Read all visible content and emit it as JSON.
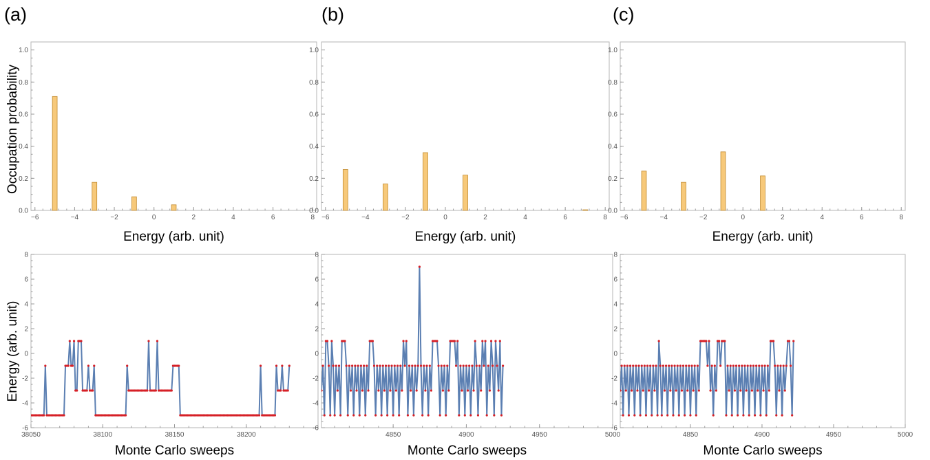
{
  "figure": {
    "panel_labels": [
      "(a)",
      "(b)",
      "(c)"
    ],
    "top_ylabel": "Occupation probability",
    "bottom_ylabel": "Energy (arb. unit)"
  },
  "chart_data": [
    {
      "id": "a-top",
      "type": "bar",
      "xlabel": "Energy (arb. unit)",
      "ylabel": "Occupation probability",
      "xlim": [
        -6.2,
        8.2
      ],
      "ylim": [
        0,
        1.05
      ],
      "xticks": [
        -6,
        -4,
        -2,
        0,
        2,
        4,
        6,
        8
      ],
      "yticks": [
        0.0,
        0.2,
        0.4,
        0.6,
        0.8,
        1.0
      ],
      "ytick_labels": [
        "0.0",
        "0.2",
        "0.4",
        "0.6",
        "0.8",
        "1.0"
      ],
      "x": [
        -5,
        -3,
        -1,
        1
      ],
      "values": [
        0.71,
        0.175,
        0.085,
        0.035
      ]
    },
    {
      "id": "b-top",
      "type": "bar",
      "xlabel": "Energy (arb. unit)",
      "ylabel": "",
      "xlim": [
        -6.2,
        8.2
      ],
      "ylim": [
        0,
        1.05
      ],
      "xticks": [
        -6,
        -4,
        -2,
        0,
        2,
        4,
        6,
        8
      ],
      "yticks": [
        0.0,
        0.2,
        0.4,
        0.6,
        0.8,
        1.0
      ],
      "ytick_labels": [
        "0.0",
        "0.2",
        "0.4",
        "0.6",
        "0.8",
        "1.0"
      ],
      "x": [
        -5,
        -3,
        -1,
        1,
        7
      ],
      "values": [
        0.255,
        0.165,
        0.36,
        0.22,
        0.004
      ]
    },
    {
      "id": "c-top",
      "type": "bar",
      "xlabel": "Energy (arb. unit)",
      "ylabel": "",
      "xlim": [
        -6.2,
        8.2
      ],
      "ylim": [
        0,
        1.05
      ],
      "xticks": [
        -6,
        -4,
        -2,
        0,
        2,
        4,
        6,
        8
      ],
      "yticks": [
        0.0,
        0.2,
        0.4,
        0.6,
        0.8,
        1.0
      ],
      "ytick_labels": [
        "0.0",
        "0.2",
        "0.4",
        "0.6",
        "0.8",
        "1.0"
      ],
      "x": [
        -5,
        -3,
        -1,
        1
      ],
      "values": [
        0.245,
        0.175,
        0.365,
        0.215
      ]
    },
    {
      "id": "a-bottom",
      "type": "line",
      "xlabel": "Monte Carlo sweeps",
      "ylabel": "Energy (arb. unit)",
      "xlim": [
        38050,
        38250
      ],
      "ylim": [
        -6,
        8
      ],
      "xticks": [
        38050,
        38100,
        38150,
        38200
      ],
      "yticks": [
        -6,
        -4,
        -2,
        0,
        2,
        4,
        6,
        8
      ],
      "x_start": 38050,
      "x_step": 1,
      "y_runs": [
        [
          -5,
          10
        ],
        [
          -1,
          1
        ],
        [
          -5,
          13
        ],
        [
          -1,
          3
        ],
        [
          1,
          1
        ],
        [
          -1,
          2
        ],
        [
          1,
          1
        ],
        [
          -3,
          2
        ],
        [
          1,
          3
        ],
        [
          -3,
          4
        ],
        [
          -1,
          1
        ],
        [
          -3,
          3
        ],
        [
          -1,
          1
        ],
        [
          -5,
          22
        ],
        [
          -1,
          1
        ],
        [
          -3,
          14
        ],
        [
          1,
          1
        ],
        [
          -3,
          5
        ],
        [
          1,
          1
        ],
        [
          -3,
          10
        ],
        [
          -1,
          5
        ],
        [
          -5,
          56
        ],
        [
          -1,
          1
        ],
        [
          -5,
          10
        ],
        [
          -1,
          1
        ],
        [
          -3,
          3
        ],
        [
          -1,
          1
        ],
        [
          -3,
          4
        ],
        [
          -1,
          1
        ]
      ]
    },
    {
      "id": "b-bottom",
      "type": "line",
      "xlabel": "Monte Carlo sweeps",
      "ylabel": "",
      "xlim": [
        4801,
        5000
      ],
      "ylim": [
        -6,
        8
      ],
      "xticks": [
        4850,
        4900,
        4950,
        5000
      ],
      "yticks": [
        -6,
        -4,
        -2,
        0,
        2,
        4,
        6,
        8
      ],
      "x_start": 4801,
      "x_step": 1,
      "y_runs": [
        [
          -3,
          1
        ],
        [
          -1,
          1
        ],
        [
          -5,
          1
        ],
        [
          1,
          2
        ],
        [
          -1,
          1
        ],
        [
          -5,
          1
        ],
        [
          1,
          1
        ],
        [
          -1,
          1
        ],
        [
          -5,
          1
        ],
        [
          -1,
          1
        ],
        [
          -3,
          1
        ],
        [
          -1,
          1
        ],
        [
          -5,
          1
        ],
        [
          1,
          3
        ],
        [
          -1,
          1
        ],
        [
          -5,
          1
        ],
        [
          -1,
          1
        ],
        [
          -3,
          1
        ],
        [
          -1,
          1
        ],
        [
          -5,
          1
        ],
        [
          -1,
          1
        ],
        [
          -3,
          1
        ],
        [
          -1,
          1
        ],
        [
          -5,
          1
        ],
        [
          -1,
          1
        ],
        [
          -3,
          1
        ],
        [
          -1,
          1
        ],
        [
          -5,
          1
        ],
        [
          -1,
          1
        ],
        [
          -3,
          1
        ],
        [
          1,
          3
        ],
        [
          -1,
          1
        ],
        [
          -5,
          1
        ],
        [
          -1,
          1
        ],
        [
          -3,
          1
        ],
        [
          -1,
          1
        ],
        [
          -5,
          1
        ],
        [
          -1,
          1
        ],
        [
          -3,
          1
        ],
        [
          -1,
          1
        ],
        [
          -5,
          1
        ],
        [
          -1,
          1
        ],
        [
          -3,
          1
        ],
        [
          -1,
          1
        ],
        [
          -5,
          1
        ],
        [
          -1,
          1
        ],
        [
          -3,
          1
        ],
        [
          -1,
          1
        ],
        [
          -5,
          1
        ],
        [
          -1,
          1
        ],
        [
          -3,
          1
        ],
        [
          1,
          1
        ],
        [
          -1,
          1
        ],
        [
          1,
          1
        ],
        [
          -5,
          1
        ],
        [
          -1,
          1
        ],
        [
          -3,
          1
        ],
        [
          -1,
          1
        ],
        [
          -5,
          1
        ],
        [
          -1,
          1
        ],
        [
          -3,
          1
        ],
        [
          -1,
          1
        ],
        [
          7,
          1
        ],
        [
          -1,
          1
        ],
        [
          -5,
          1
        ],
        [
          -1,
          1
        ],
        [
          -3,
          1
        ],
        [
          -1,
          1
        ],
        [
          -5,
          1
        ],
        [
          -1,
          1
        ],
        [
          -3,
          1
        ],
        [
          1,
          4
        ],
        [
          -1,
          1
        ],
        [
          -5,
          1
        ],
        [
          -1,
          1
        ],
        [
          -3,
          1
        ],
        [
          -1,
          1
        ],
        [
          -5,
          1
        ],
        [
          -1,
          1
        ],
        [
          -3,
          1
        ],
        [
          1,
          4
        ],
        [
          -1,
          1
        ],
        [
          1,
          1
        ],
        [
          -5,
          1
        ],
        [
          -1,
          1
        ],
        [
          -3,
          1
        ],
        [
          -1,
          1
        ],
        [
          -5,
          1
        ],
        [
          -1,
          1
        ],
        [
          -3,
          1
        ],
        [
          -1,
          1
        ],
        [
          -5,
          1
        ],
        [
          -1,
          1
        ],
        [
          -3,
          1
        ],
        [
          1,
          1
        ],
        [
          -1,
          1
        ],
        [
          -5,
          1
        ],
        [
          -1,
          1
        ],
        [
          -3,
          1
        ],
        [
          1,
          1
        ],
        [
          -1,
          1
        ],
        [
          1,
          1
        ],
        [
          -5,
          1
        ],
        [
          -1,
          1
        ],
        [
          -3,
          1
        ],
        [
          1,
          1
        ],
        [
          -1,
          1
        ],
        [
          -5,
          1
        ],
        [
          1,
          1
        ],
        [
          -1,
          1
        ],
        [
          -3,
          1
        ],
        [
          1,
          1
        ],
        [
          -5,
          1
        ],
        [
          -1,
          1
        ]
      ]
    },
    {
      "id": "c-bottom",
      "type": "line",
      "xlabel": "Monte Carlo sweeps",
      "ylabel": "",
      "xlim": [
        4801,
        5000
      ],
      "ylim": [
        -6,
        8
      ],
      "xticks": [
        4850,
        4900,
        4950,
        5000
      ],
      "yticks": [
        -6,
        -4,
        -2,
        0,
        2,
        4,
        6,
        8
      ],
      "x_start": 4801,
      "x_step": 1,
      "y_runs": [
        [
          -3,
          1
        ],
        [
          -1,
          1
        ],
        [
          -5,
          1
        ],
        [
          -1,
          1
        ],
        [
          -3,
          1
        ],
        [
          -1,
          1
        ],
        [
          -5,
          1
        ],
        [
          -1,
          1
        ],
        [
          -3,
          1
        ],
        [
          -1,
          1
        ],
        [
          -5,
          1
        ],
        [
          -1,
          1
        ],
        [
          -3,
          1
        ],
        [
          -1,
          1
        ],
        [
          -5,
          1
        ],
        [
          -1,
          1
        ],
        [
          -3,
          1
        ],
        [
          -1,
          1
        ],
        [
          -5,
          1
        ],
        [
          -1,
          1
        ],
        [
          -3,
          1
        ],
        [
          -1,
          1
        ],
        [
          -5,
          1
        ],
        [
          -1,
          1
        ],
        [
          -3,
          1
        ],
        [
          -1,
          1
        ],
        [
          -5,
          1
        ],
        [
          1,
          1
        ],
        [
          -1,
          1
        ],
        [
          -5,
          1
        ],
        [
          -1,
          1
        ],
        [
          -3,
          1
        ],
        [
          -1,
          1
        ],
        [
          -5,
          1
        ],
        [
          -1,
          1
        ],
        [
          -3,
          1
        ],
        [
          -1,
          1
        ],
        [
          -5,
          1
        ],
        [
          -1,
          1
        ],
        [
          -3,
          1
        ],
        [
          -1,
          1
        ],
        [
          -5,
          1
        ],
        [
          -1,
          1
        ],
        [
          -3,
          1
        ],
        [
          -1,
          1
        ],
        [
          -5,
          1
        ],
        [
          -1,
          1
        ],
        [
          -3,
          1
        ],
        [
          -1,
          1
        ],
        [
          -5,
          1
        ],
        [
          -1,
          1
        ],
        [
          -3,
          1
        ],
        [
          -1,
          1
        ],
        [
          -5,
          1
        ],
        [
          -1,
          1
        ],
        [
          -3,
          1
        ],
        [
          1,
          5
        ],
        [
          -1,
          1
        ],
        [
          1,
          1
        ],
        [
          -3,
          1
        ],
        [
          -1,
          1
        ],
        [
          -5,
          1
        ],
        [
          -1,
          1
        ],
        [
          -3,
          1
        ],
        [
          1,
          2
        ],
        [
          -1,
          1
        ],
        [
          1,
          3
        ],
        [
          -5,
          1
        ],
        [
          -1,
          1
        ],
        [
          -3,
          1
        ],
        [
          -1,
          1
        ],
        [
          -5,
          1
        ],
        [
          -1,
          1
        ],
        [
          -3,
          1
        ],
        [
          -1,
          1
        ],
        [
          -5,
          1
        ],
        [
          -1,
          1
        ],
        [
          -3,
          1
        ],
        [
          -1,
          1
        ],
        [
          -5,
          1
        ],
        [
          -1,
          1
        ],
        [
          -3,
          1
        ],
        [
          -1,
          1
        ],
        [
          -5,
          1
        ],
        [
          -1,
          1
        ],
        [
          -3,
          1
        ],
        [
          -1,
          1
        ],
        [
          -5,
          1
        ],
        [
          -1,
          1
        ],
        [
          -3,
          1
        ],
        [
          -1,
          1
        ],
        [
          -5,
          1
        ],
        [
          -1,
          1
        ],
        [
          -3,
          1
        ],
        [
          -1,
          1
        ],
        [
          -5,
          1
        ],
        [
          -1,
          1
        ],
        [
          -3,
          1
        ],
        [
          1,
          3
        ],
        [
          -1,
          1
        ],
        [
          -5,
          1
        ],
        [
          -1,
          1
        ],
        [
          -3,
          1
        ],
        [
          -1,
          1
        ],
        [
          -5,
          1
        ],
        [
          -1,
          1
        ],
        [
          -3,
          1
        ],
        [
          -1,
          1
        ],
        [
          1,
          2
        ],
        [
          -1,
          1
        ],
        [
          -5,
          1
        ],
        [
          1,
          1
        ]
      ]
    }
  ]
}
